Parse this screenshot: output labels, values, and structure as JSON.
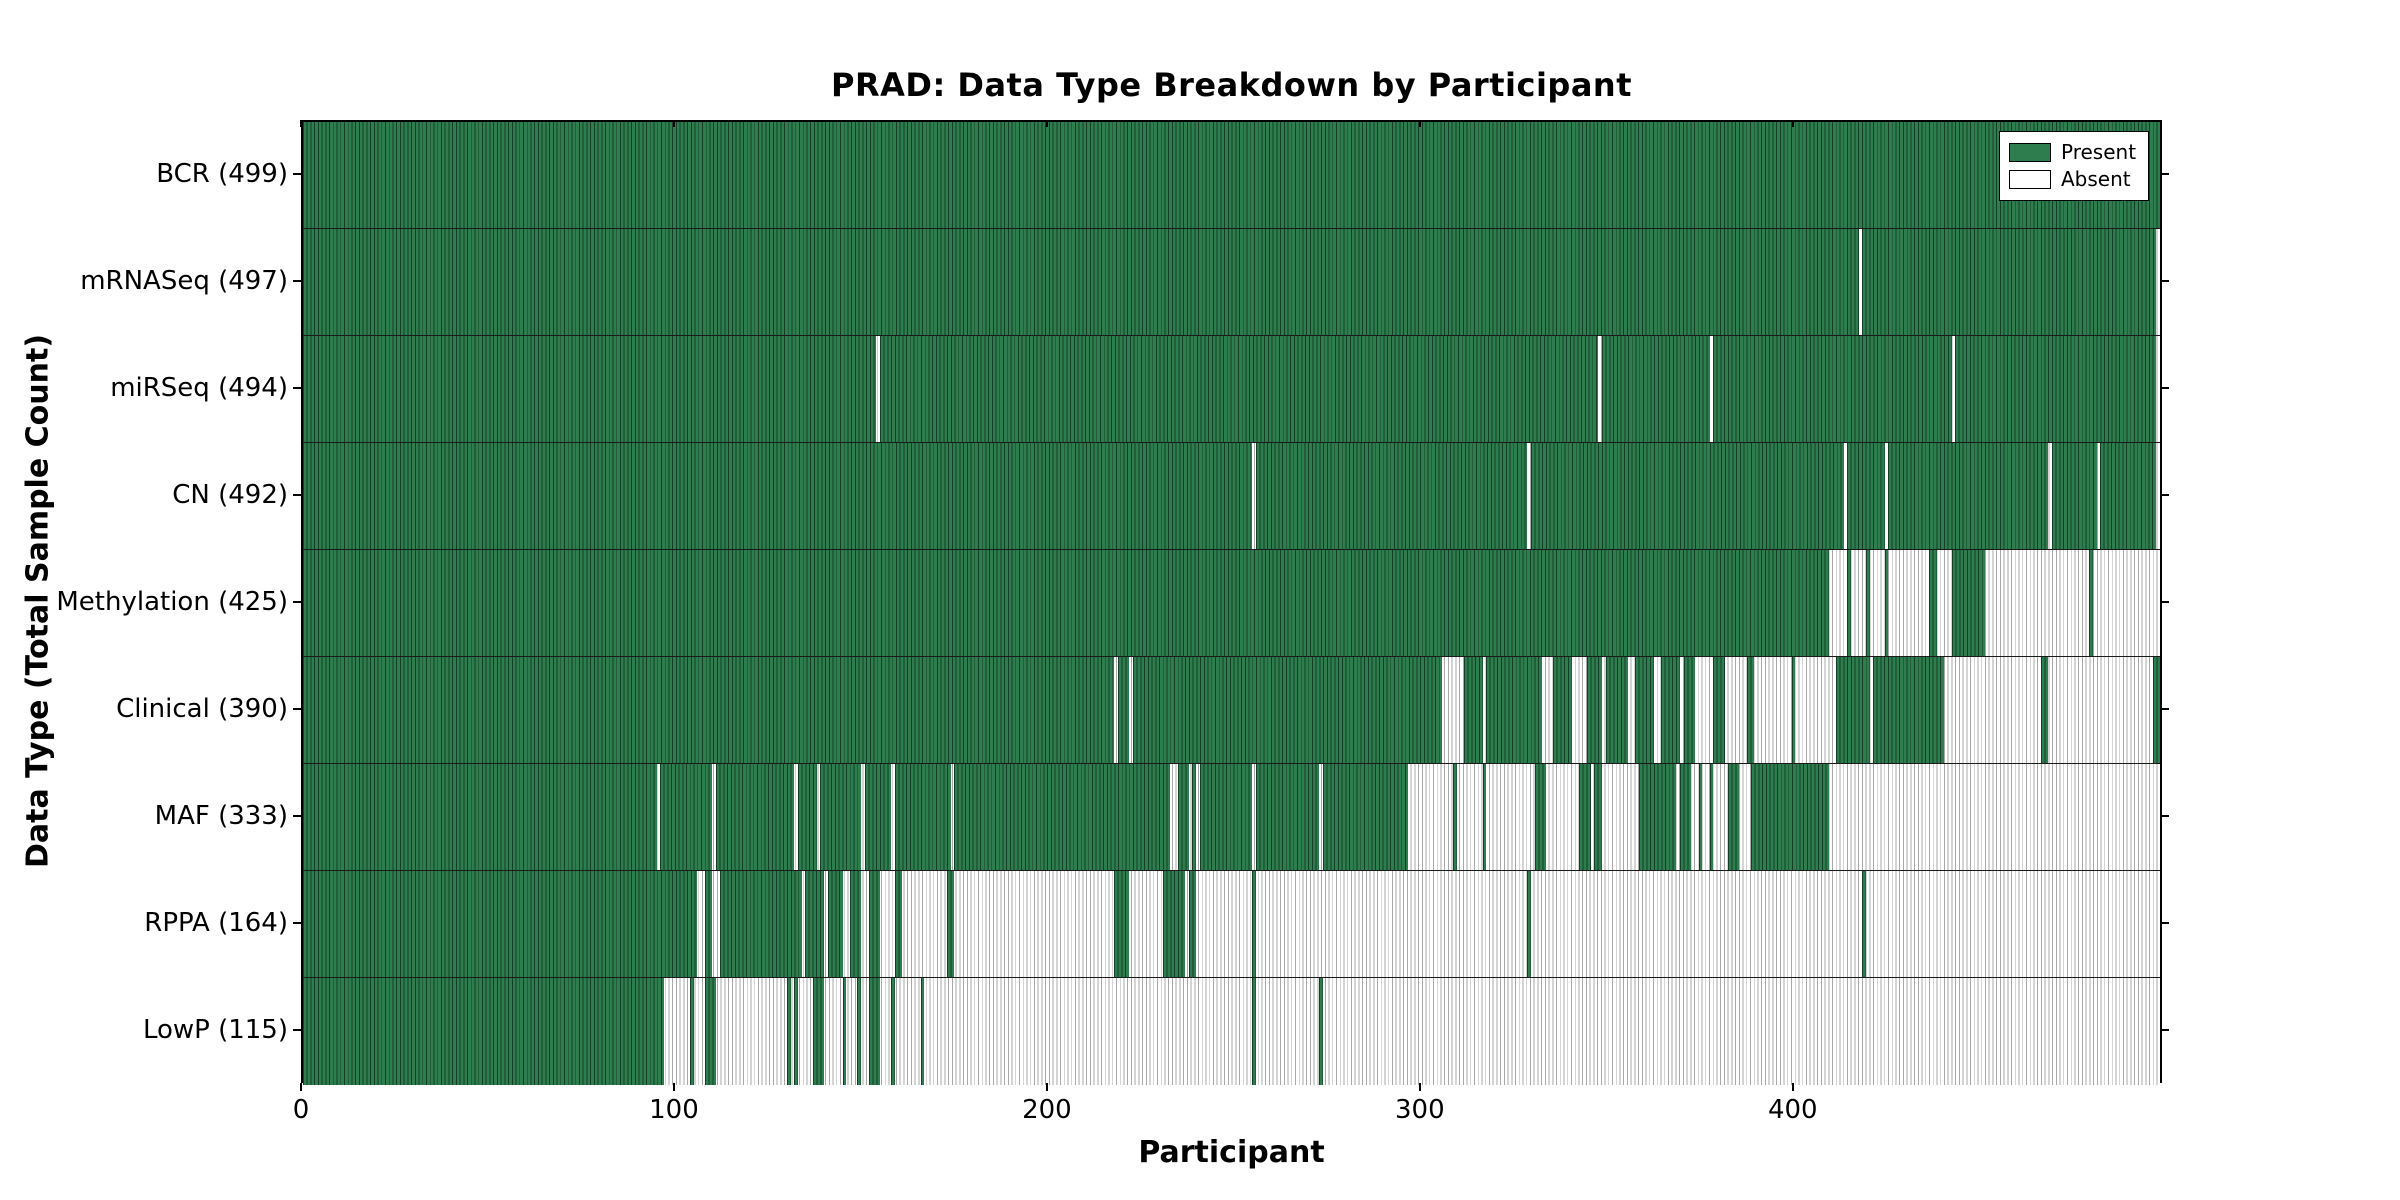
{
  "chart_data": {
    "type": "heatmap",
    "title": "PRAD: Data Type Breakdown by Participant",
    "xlabel": "Participant",
    "ylabel": "Data Type (Total Sample Count)",
    "x_ticks": [
      0,
      100,
      200,
      300,
      400
    ],
    "x_range": [
      0,
      499
    ],
    "participant_count": 499,
    "grid": false,
    "legend_position": "upper-right",
    "legend": [
      {
        "label": "Present",
        "value": "present"
      },
      {
        "label": "Absent",
        "value": "absent"
      }
    ],
    "colors": {
      "present": "#2e7d4f",
      "present_edge": "#143f26",
      "absent": "#ffffff",
      "absent_edge": "#a8a8a8",
      "axis": "#000000"
    },
    "rows": [
      {
        "label": "BCR (499)",
        "data_type": "BCR",
        "count": 499,
        "present_segments": [
          [
            0,
            499
          ]
        ]
      },
      {
        "label": "mRNASeq (497)",
        "data_type": "mRNASeq",
        "count": 497,
        "present_segments": [
          [
            0,
            418
          ],
          [
            419,
            498
          ]
        ]
      },
      {
        "label": "miRSeq (494)",
        "data_type": "miRSeq",
        "count": 494,
        "present_segments": [
          [
            0,
            154
          ],
          [
            155,
            348
          ],
          [
            349,
            378
          ],
          [
            379,
            443
          ],
          [
            444,
            498
          ]
        ]
      },
      {
        "label": "CN (492)",
        "data_type": "CN",
        "count": 492,
        "present_segments": [
          [
            0,
            255
          ],
          [
            256,
            329
          ],
          [
            330,
            414
          ],
          [
            415,
            425
          ],
          [
            426,
            469
          ],
          [
            470,
            482
          ],
          [
            483,
            498
          ]
        ]
      },
      {
        "label": "Methylation (425)",
        "data_type": "Methylation",
        "count": 425,
        "present_segments": [
          [
            0,
            410
          ],
          [
            415,
            416
          ],
          [
            420,
            421
          ],
          [
            425,
            426
          ],
          [
            437,
            439
          ],
          [
            443,
            452
          ],
          [
            480,
            481
          ]
        ]
      },
      {
        "label": "Clinical (390)",
        "data_type": "Clinical",
        "count": 390,
        "present_segments": [
          [
            0,
            218
          ],
          [
            219,
            222
          ],
          [
            223,
            306
          ],
          [
            312,
            317
          ],
          [
            318,
            333
          ],
          [
            336,
            341
          ],
          [
            345,
            349
          ],
          [
            350,
            356
          ],
          [
            358,
            363
          ],
          [
            365,
            370
          ],
          [
            371,
            374
          ],
          [
            379,
            382
          ],
          [
            388,
            390
          ],
          [
            400,
            401
          ],
          [
            412,
            421
          ],
          [
            422,
            441
          ],
          [
            467,
            469
          ],
          [
            497,
            499
          ]
        ]
      },
      {
        "label": "MAF (333)",
        "data_type": "MAF",
        "count": 333,
        "present_segments": [
          [
            0,
            95
          ],
          [
            96,
            110
          ],
          [
            111,
            132
          ],
          [
            133,
            138
          ],
          [
            139,
            150
          ],
          [
            151,
            158
          ],
          [
            159,
            174
          ],
          [
            175,
            233
          ],
          [
            235,
            238
          ],
          [
            239,
            240
          ],
          [
            241,
            255
          ],
          [
            256,
            273
          ],
          [
            274,
            297
          ],
          [
            309,
            310
          ],
          [
            317,
            318
          ],
          [
            331,
            334
          ],
          [
            343,
            346
          ],
          [
            347,
            349
          ],
          [
            359,
            369
          ],
          [
            370,
            373
          ],
          [
            375,
            376
          ],
          [
            378,
            379
          ],
          [
            383,
            386
          ],
          [
            389,
            410
          ]
        ]
      },
      {
        "label": "RPPA (164)",
        "data_type": "RPPA",
        "count": 164,
        "present_segments": [
          [
            0,
            106
          ],
          [
            108,
            110
          ],
          [
            112,
            134
          ],
          [
            135,
            140
          ],
          [
            141,
            145
          ],
          [
            147,
            150
          ],
          [
            152,
            155
          ],
          [
            159,
            161
          ],
          [
            173,
            175
          ],
          [
            218,
            222
          ],
          [
            231,
            237
          ],
          [
            238,
            240
          ],
          [
            255,
            256
          ],
          [
            329,
            330
          ],
          [
            419,
            420
          ]
        ]
      },
      {
        "label": "LowP (115)",
        "data_type": "LowP",
        "count": 115,
        "present_segments": [
          [
            0,
            97
          ],
          [
            104,
            105
          ],
          [
            108,
            111
          ],
          [
            130,
            131
          ],
          [
            132,
            133
          ],
          [
            137,
            140
          ],
          [
            145,
            146
          ],
          [
            149,
            150
          ],
          [
            152,
            155
          ],
          [
            158,
            159
          ],
          [
            166,
            167
          ],
          [
            255,
            256
          ],
          [
            273,
            274
          ]
        ]
      }
    ]
  }
}
